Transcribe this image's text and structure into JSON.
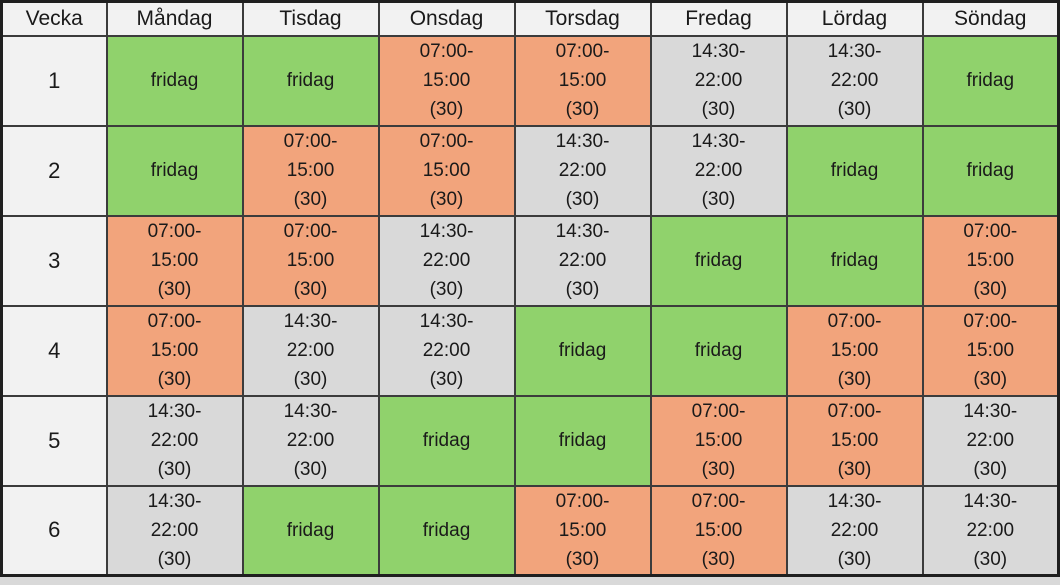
{
  "table": {
    "header": {
      "week_label": "Vecka",
      "days": [
        "Måndag",
        "Tisdag",
        "Onsdag",
        "Torsdag",
        "Fredag",
        "Lördag",
        "Söndag"
      ]
    },
    "shift_types": {
      "early": {
        "label": "07:00-15:00 (30)",
        "lines": [
          "07:00-",
          "15:00",
          "(30)"
        ],
        "bg": "#f2a47c"
      },
      "late": {
        "label": "14:30-22:00 (30)",
        "lines": [
          "14:30-",
          "22:00",
          "(30)"
        ],
        "bg": "#d9d9d9"
      },
      "off": {
        "label": "fridag",
        "lines": [
          "fridag"
        ],
        "bg": "#90d26c"
      }
    },
    "rows": [
      {
        "week": "1",
        "shifts": [
          "off",
          "off",
          "early",
          "early",
          "late",
          "late",
          "off"
        ]
      },
      {
        "week": "2",
        "shifts": [
          "off",
          "early",
          "early",
          "late",
          "late",
          "off",
          "off"
        ]
      },
      {
        "week": "3",
        "shifts": [
          "early",
          "early",
          "late",
          "late",
          "off",
          "off",
          "early"
        ]
      },
      {
        "week": "4",
        "shifts": [
          "early",
          "late",
          "late",
          "off",
          "off",
          "early",
          "early"
        ]
      },
      {
        "week": "5",
        "shifts": [
          "late",
          "late",
          "off",
          "off",
          "early",
          "early",
          "late"
        ]
      },
      {
        "week": "6",
        "shifts": [
          "late",
          "off",
          "off",
          "early",
          "early",
          "late",
          "late"
        ]
      }
    ]
  },
  "colors": {
    "shift_early_bg": "#f2a47c",
    "shift_late_bg": "#d9d9d9",
    "day_off_bg": "#90d26c",
    "header_bg": "#f2f2f2",
    "week_column_bg": "#f2f2f2",
    "border": "#3c3c3c",
    "outer_border": "#1f1f1f",
    "page_background": "#d9d9d9",
    "text": "#1a1a1a"
  }
}
